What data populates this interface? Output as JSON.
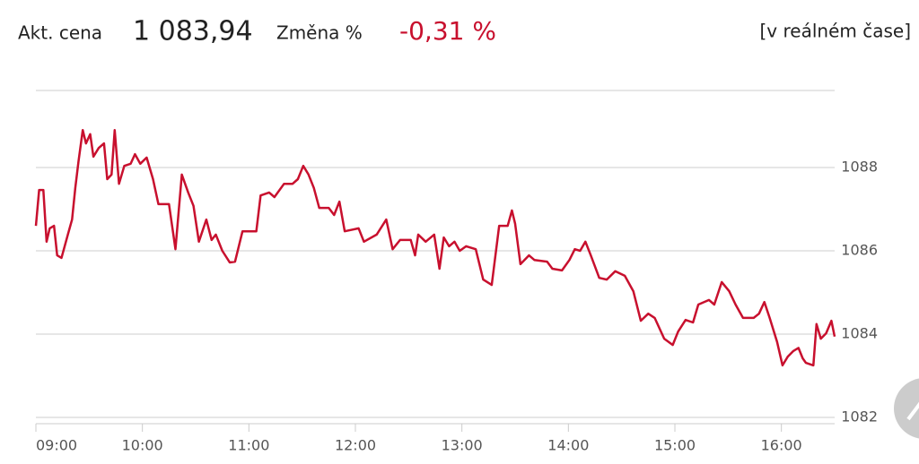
{
  "header": {
    "price_label": "Akt. cena",
    "price": "1 083,94",
    "change_label": "Změna %",
    "change": "-0,31 %",
    "mode": "[v reálném čase]"
  },
  "chart_data": {
    "type": "line",
    "x": [
      9.0,
      9.03,
      9.07,
      9.1,
      9.13,
      9.17,
      9.2,
      9.24,
      9.3,
      9.34,
      9.37,
      9.4,
      9.44,
      9.47,
      9.51,
      9.54,
      9.59,
      9.64,
      9.67,
      9.71,
      9.74,
      9.78,
      9.83,
      9.89,
      9.93,
      9.98,
      10.04,
      10.1,
      10.15,
      10.25,
      10.31,
      10.37,
      10.43,
      10.48,
      10.53,
      10.6,
      10.65,
      10.69,
      10.75,
      10.82,
      10.87,
      10.94,
      11.07,
      11.11,
      11.19,
      11.24,
      11.33,
      11.41,
      11.46,
      11.51,
      11.56,
      11.61,
      11.66,
      11.75,
      11.8,
      11.85,
      11.9,
      12.03,
      12.08,
      12.2,
      12.29,
      12.35,
      12.42,
      12.52,
      12.56,
      12.59,
      12.66,
      12.74,
      12.79,
      12.83,
      12.88,
      12.93,
      12.98,
      13.04,
      13.13,
      13.2,
      13.28,
      13.35,
      13.43,
      13.47,
      13.5,
      13.55,
      13.63,
      13.68,
      13.8,
      13.85,
      13.94,
      14.01,
      14.06,
      14.11,
      14.16,
      14.21,
      14.29,
      14.36,
      14.44,
      14.53,
      14.61,
      14.68,
      14.75,
      14.81,
      14.9,
      14.98,
      15.03,
      15.1,
      15.17,
      15.22,
      15.32,
      15.37,
      15.44,
      15.51,
      15.57,
      15.64,
      15.74,
      15.79,
      15.84,
      15.89,
      15.96,
      16.01,
      16.06,
      16.11,
      16.16,
      16.2,
      16.23,
      16.3,
      16.33,
      16.37,
      16.42,
      16.47,
      16.5
    ],
    "series": [
      {
        "color": "#c8102e",
        "values": [
          1086.6,
          1087.46,
          1087.46,
          1086.22,
          1086.54,
          1086.6,
          1085.89,
          1085.83,
          1086.39,
          1086.75,
          1087.51,
          1088.15,
          1088.9,
          1088.58,
          1088.8,
          1088.26,
          1088.47,
          1088.58,
          1087.72,
          1087.83,
          1088.9,
          1087.61,
          1088.04,
          1088.09,
          1088.32,
          1088.09,
          1088.24,
          1087.72,
          1087.12,
          1087.12,
          1086.04,
          1087.83,
          1087.4,
          1087.08,
          1086.22,
          1086.75,
          1086.26,
          1086.39,
          1086.0,
          1085.72,
          1085.74,
          1086.47,
          1086.47,
          1087.33,
          1087.4,
          1087.29,
          1087.61,
          1087.61,
          1087.72,
          1088.04,
          1087.83,
          1087.51,
          1087.03,
          1087.03,
          1086.86,
          1087.18,
          1086.47,
          1086.54,
          1086.22,
          1086.39,
          1086.75,
          1086.04,
          1086.26,
          1086.26,
          1085.89,
          1086.39,
          1086.22,
          1086.39,
          1085.57,
          1086.32,
          1086.11,
          1086.22,
          1086.0,
          1086.11,
          1086.04,
          1085.31,
          1085.18,
          1086.6,
          1086.6,
          1086.97,
          1086.65,
          1085.68,
          1085.89,
          1085.78,
          1085.74,
          1085.57,
          1085.53,
          1085.78,
          1086.04,
          1086.0,
          1086.22,
          1085.89,
          1085.35,
          1085.31,
          1085.51,
          1085.4,
          1085.03,
          1084.32,
          1084.49,
          1084.39,
          1083.89,
          1083.74,
          1084.06,
          1084.34,
          1084.28,
          1084.71,
          1084.82,
          1084.71,
          1085.25,
          1085.03,
          1084.71,
          1084.39,
          1084.39,
          1084.49,
          1084.77,
          1084.39,
          1083.81,
          1083.25,
          1083.46,
          1083.59,
          1083.67,
          1083.42,
          1083.31,
          1083.25,
          1084.24,
          1083.89,
          1084.02,
          1084.32,
          1083.94
        ]
      }
    ],
    "xlim": [
      9,
      16.5
    ],
    "xticks": [
      {
        "value": 9,
        "label": "09:00"
      },
      {
        "value": 10,
        "label": "10:00"
      },
      {
        "value": 11,
        "label": "11:00"
      },
      {
        "value": 12,
        "label": "12:00"
      },
      {
        "value": 13,
        "label": "13:00"
      },
      {
        "value": 14,
        "label": "14:00"
      },
      {
        "value": 15,
        "label": "15:00"
      },
      {
        "value": 16,
        "label": "16:00"
      }
    ],
    "ylim": [
      1082,
      1089.85
    ],
    "yticks": [
      1082,
      1084,
      1086,
      1088
    ],
    "grid": true
  }
}
